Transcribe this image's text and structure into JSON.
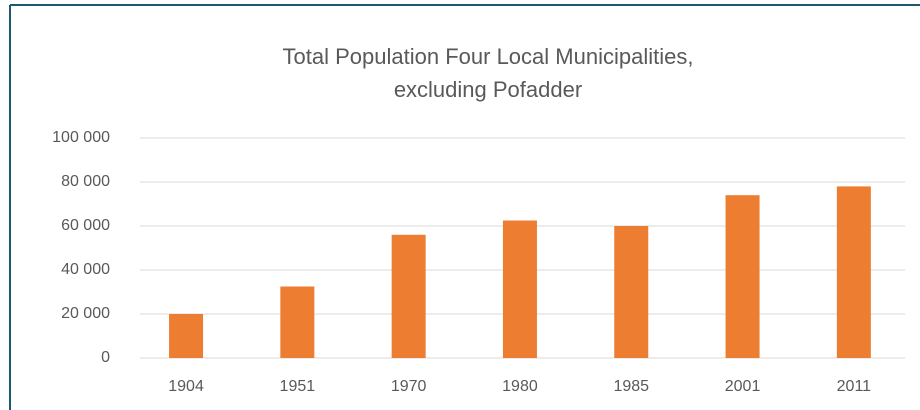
{
  "chart_data": {
    "type": "bar",
    "title": [
      "Total Population Four Local Municipalities,",
      "excluding Pofadder"
    ],
    "categories": [
      "1904",
      "1951",
      "1970",
      "1980",
      "1985",
      "2001",
      "2011"
    ],
    "values": [
      20000,
      32500,
      56000,
      62500,
      60000,
      74000,
      78000
    ],
    "color": "#ed7d31",
    "ylim": [
      0,
      100000
    ],
    "yticks": [
      0,
      {
        "value": 20000,
        "label": "20 000"
      },
      {
        "value": 40000,
        "label": "40 000"
      },
      {
        "value": 60000,
        "label": "60 000"
      },
      {
        "value": 80000,
        "label": "80 000"
      },
      {
        "value": 100000,
        "label": "100 000"
      }
    ],
    "grid": true
  }
}
